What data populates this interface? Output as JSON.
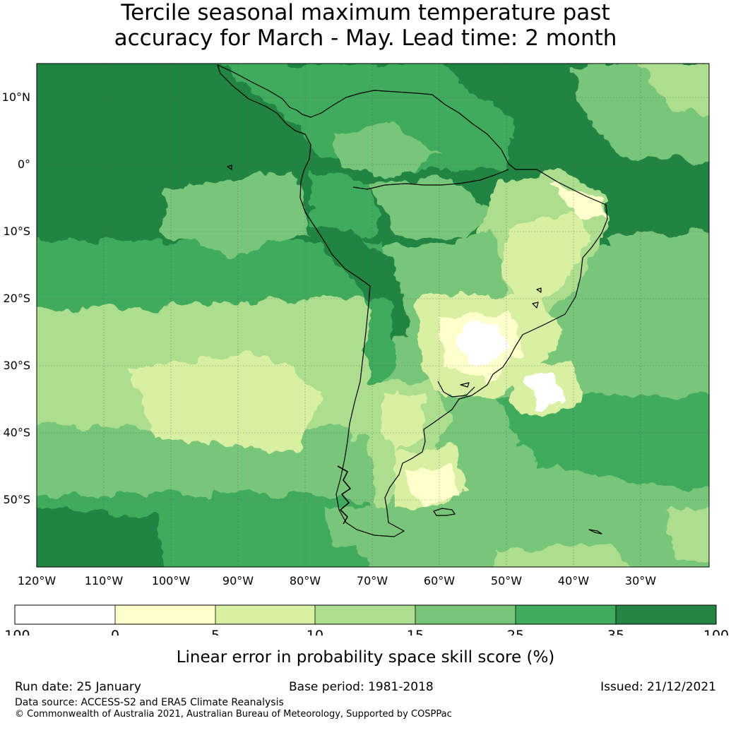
{
  "title": {
    "line1": "Tercile seasonal maximum temperature past",
    "line2": "accuracy for March - May. Lead time: 2 month"
  },
  "map": {
    "lat_ticks": [
      "10°N",
      "0°",
      "10°S",
      "20°S",
      "30°S",
      "40°S",
      "50°S"
    ],
    "lon_ticks": [
      "120°W",
      "110°W",
      "100°W",
      "90°W",
      "80°W",
      "70°W",
      "60°W",
      "50°W",
      "40°W",
      "30°W"
    ],
    "extent_lon": [
      -120,
      -20
    ],
    "extent_lat": [
      -60,
      15
    ]
  },
  "colorbar": {
    "ticks": [
      "-100",
      "0",
      "5",
      "10",
      "15",
      "25",
      "35",
      "100"
    ],
    "colors": [
      "#ffffff",
      "#ffffcc",
      "#d9f0a3",
      "#addd8e",
      "#78c679",
      "#41ab5d",
      "#238443"
    ],
    "label": "Linear error in probability space skill score (%)"
  },
  "footer": {
    "run_date": "Run date: 25 January",
    "base_period": "Base period: 1981-2018",
    "issued": "Issued: 21/12/2021",
    "data_source": "Data source: ACCESS-S2 and ERA5 Climate Reanalysis",
    "copyright": "© Commonwealth of Australia 2021, Australian Bureau of Meteorology, Supported by COSPPac"
  }
}
